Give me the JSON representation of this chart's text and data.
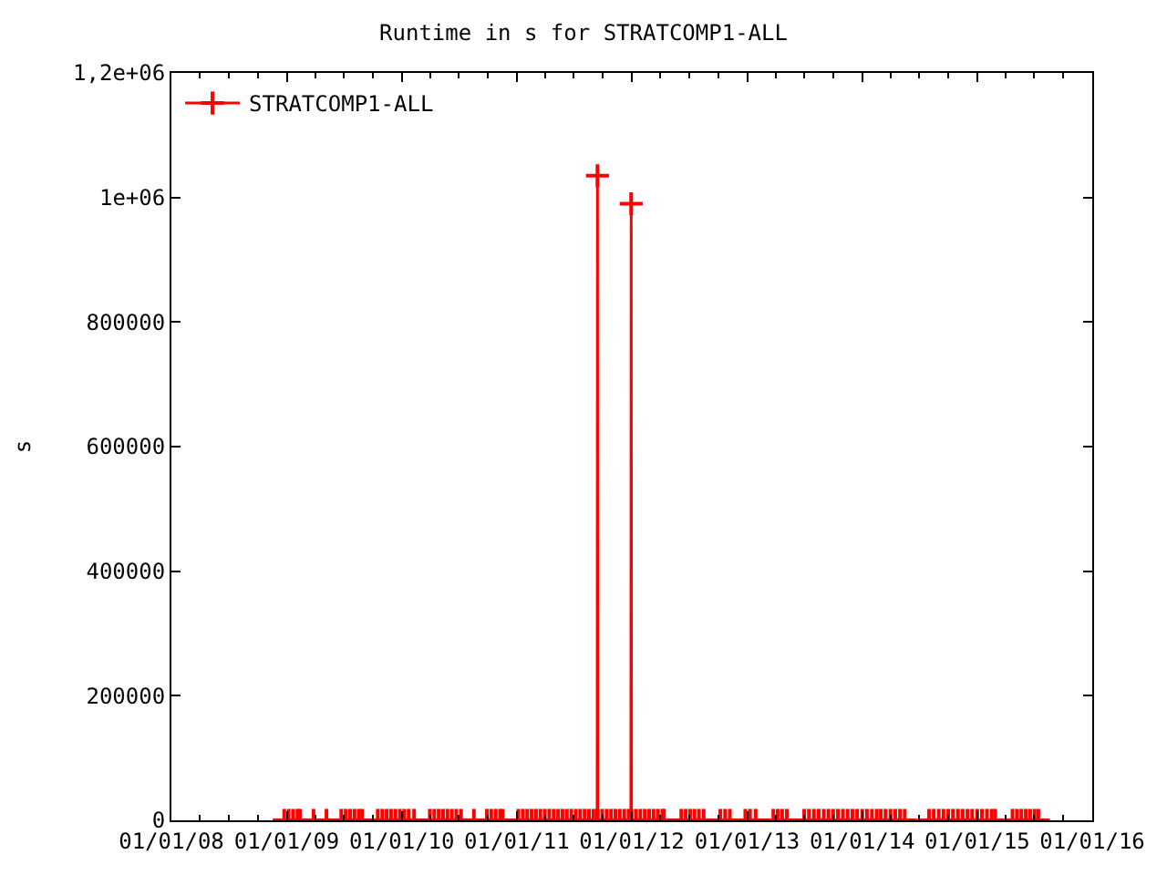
{
  "chart_data": {
    "type": "line",
    "title": "Runtime in s for STRATCOMP1-ALL",
    "ylabel": "s",
    "x": [
      "2008-12-24",
      "2009-01-07",
      "2009-01-21",
      "2009-02-04",
      "2009-02-12",
      "2009-03-27",
      "2009-05-07",
      "2009-06-23",
      "2009-07-07",
      "2009-07-21",
      "2009-08-04",
      "2009-08-18",
      "2009-08-28",
      "2009-10-17",
      "2009-10-31",
      "2009-11-14",
      "2009-11-28",
      "2009-12-12",
      "2009-12-26",
      "2010-01-09",
      "2010-01-23",
      "2010-02-09",
      "2010-03-31",
      "2010-04-14",
      "2010-04-28",
      "2010-05-12",
      "2010-05-26",
      "2010-06-09",
      "2010-06-23",
      "2010-07-08",
      "2010-08-18",
      "2010-09-28",
      "2010-10-12",
      "2010-10-26",
      "2010-11-09",
      "2010-11-17",
      "2011-01-06",
      "2011-01-20",
      "2011-02-03",
      "2011-02-17",
      "2011-03-03",
      "2011-03-17",
      "2011-03-31",
      "2011-04-14",
      "2011-04-28",
      "2011-05-12",
      "2011-05-26",
      "2011-06-09",
      "2011-06-23",
      "2011-07-07",
      "2011-07-21",
      "2011-08-04",
      "2011-08-18",
      "2011-09-01",
      "2011-09-13",
      "2011-09-14",
      "2011-09-15",
      "2011-09-29",
      "2011-10-13",
      "2011-10-27",
      "2011-11-10",
      "2011-11-24",
      "2011-12-08",
      "2011-12-22",
      "2011-12-29",
      "2011-12-30",
      "2011-12-31",
      "2012-01-14",
      "2012-01-28",
      "2012-02-11",
      "2012-02-25",
      "2012-03-10",
      "2012-03-24",
      "2012-04-07",
      "2012-04-12",
      "2012-06-06",
      "2012-06-20",
      "2012-07-04",
      "2012-07-18",
      "2012-08-01",
      "2012-08-16",
      "2012-10-08",
      "2012-10-23",
      "2012-11-07",
      "2012-12-26",
      "2013-01-10",
      "2013-01-28",
      "2013-03-25",
      "2013-04-08",
      "2013-04-22",
      "2013-05-07",
      "2013-07-01",
      "2013-07-16",
      "2013-08-01",
      "2013-08-16",
      "2013-09-01",
      "2013-09-16",
      "2013-10-01",
      "2013-10-16",
      "2013-11-01",
      "2013-11-16",
      "2013-12-01",
      "2013-12-16",
      "2014-01-01",
      "2014-01-16",
      "2014-02-01",
      "2014-02-16",
      "2014-03-01",
      "2014-03-16",
      "2014-04-01",
      "2014-04-16",
      "2014-05-01",
      "2014-05-16",
      "2014-08-01",
      "2014-08-16",
      "2014-09-01",
      "2014-09-16",
      "2014-10-01",
      "2014-10-16",
      "2014-11-01",
      "2014-11-16",
      "2014-12-01",
      "2014-12-16",
      "2015-01-01",
      "2015-01-16",
      "2015-02-01",
      "2015-02-16",
      "2015-02-27",
      "2015-04-23",
      "2015-05-07",
      "2015-05-21",
      "2015-06-04",
      "2015-06-18",
      "2015-07-02",
      "2015-07-14"
    ],
    "series": [
      {
        "name": "STRATCOMP1-ALL",
        "color": "#ff0000",
        "values": [
          0,
          0,
          0,
          0,
          0,
          0,
          0,
          0,
          0,
          0,
          0,
          0,
          0,
          0,
          0,
          0,
          0,
          0,
          0,
          0,
          0,
          0,
          0,
          0,
          0,
          0,
          0,
          0,
          0,
          0,
          0,
          0,
          0,
          0,
          0,
          0,
          0,
          0,
          0,
          0,
          0,
          0,
          0,
          0,
          0,
          0,
          0,
          0,
          0,
          0,
          0,
          0,
          0,
          0,
          0,
          1035000,
          0,
          0,
          0,
          0,
          0,
          0,
          0,
          0,
          0,
          990000,
          0,
          0,
          0,
          0,
          0,
          0,
          0,
          0,
          0,
          0,
          0,
          0,
          0,
          0,
          0,
          0,
          0,
          0,
          0,
          0,
          0,
          0,
          0,
          0,
          0,
          0,
          0,
          0,
          0,
          0,
          0,
          0,
          0,
          0,
          0,
          0,
          0,
          0,
          0,
          0,
          0,
          0,
          0,
          0,
          0,
          0,
          0,
          0,
          0,
          0,
          0,
          0,
          0,
          0,
          0,
          0,
          0,
          0,
          0,
          0,
          0,
          0,
          0,
          0,
          0,
          0,
          0,
          0,
          0
        ]
      }
    ],
    "xlim": [
      "2008-01-01",
      "2016-01-01"
    ],
    "xticks": [
      {
        "value": "2008-01-01",
        "label": "01/01/08"
      },
      {
        "value": "2008-04-01",
        "label": null
      },
      {
        "value": "2008-07-01",
        "label": null
      },
      {
        "value": "2008-10-01",
        "label": null
      },
      {
        "value": "2009-01-01",
        "label": "01/01/09"
      },
      {
        "value": "2009-04-01",
        "label": null
      },
      {
        "value": "2009-07-01",
        "label": null
      },
      {
        "value": "2009-10-01",
        "label": null
      },
      {
        "value": "2010-01-01",
        "label": "01/01/10"
      },
      {
        "value": "2010-04-01",
        "label": null
      },
      {
        "value": "2010-07-01",
        "label": null
      },
      {
        "value": "2010-10-01",
        "label": null
      },
      {
        "value": "2011-01-01",
        "label": "01/01/11"
      },
      {
        "value": "2011-04-01",
        "label": null
      },
      {
        "value": "2011-07-01",
        "label": null
      },
      {
        "value": "2011-10-01",
        "label": null
      },
      {
        "value": "2012-01-01",
        "label": "01/01/12"
      },
      {
        "value": "2012-04-01",
        "label": null
      },
      {
        "value": "2012-07-01",
        "label": null
      },
      {
        "value": "2012-10-01",
        "label": null
      },
      {
        "value": "2013-01-01",
        "label": "01/01/13"
      },
      {
        "value": "2013-04-01",
        "label": null
      },
      {
        "value": "2013-07-01",
        "label": null
      },
      {
        "value": "2013-10-01",
        "label": null
      },
      {
        "value": "2014-01-01",
        "label": "01/01/14"
      },
      {
        "value": "2014-04-01",
        "label": null
      },
      {
        "value": "2014-07-01",
        "label": null
      },
      {
        "value": "2014-10-01",
        "label": null
      },
      {
        "value": "2015-01-01",
        "label": "01/01/15"
      },
      {
        "value": "2015-04-01",
        "label": null
      },
      {
        "value": "2015-07-01",
        "label": null
      },
      {
        "value": "2015-10-01",
        "label": null
      },
      {
        "value": "2016-01-01",
        "label": "01/01/16"
      }
    ],
    "ylim": [
      0,
      1200000
    ],
    "yticks": [
      0,
      200000,
      400000,
      600000,
      800000,
      {
        "value": 1000000,
        "label": "1e+06"
      },
      {
        "value": 1200000,
        "label": "1,2e+06"
      }
    ],
    "grid": false,
    "legend": "top left",
    "marker": "cross",
    "line_style": "solid"
  }
}
